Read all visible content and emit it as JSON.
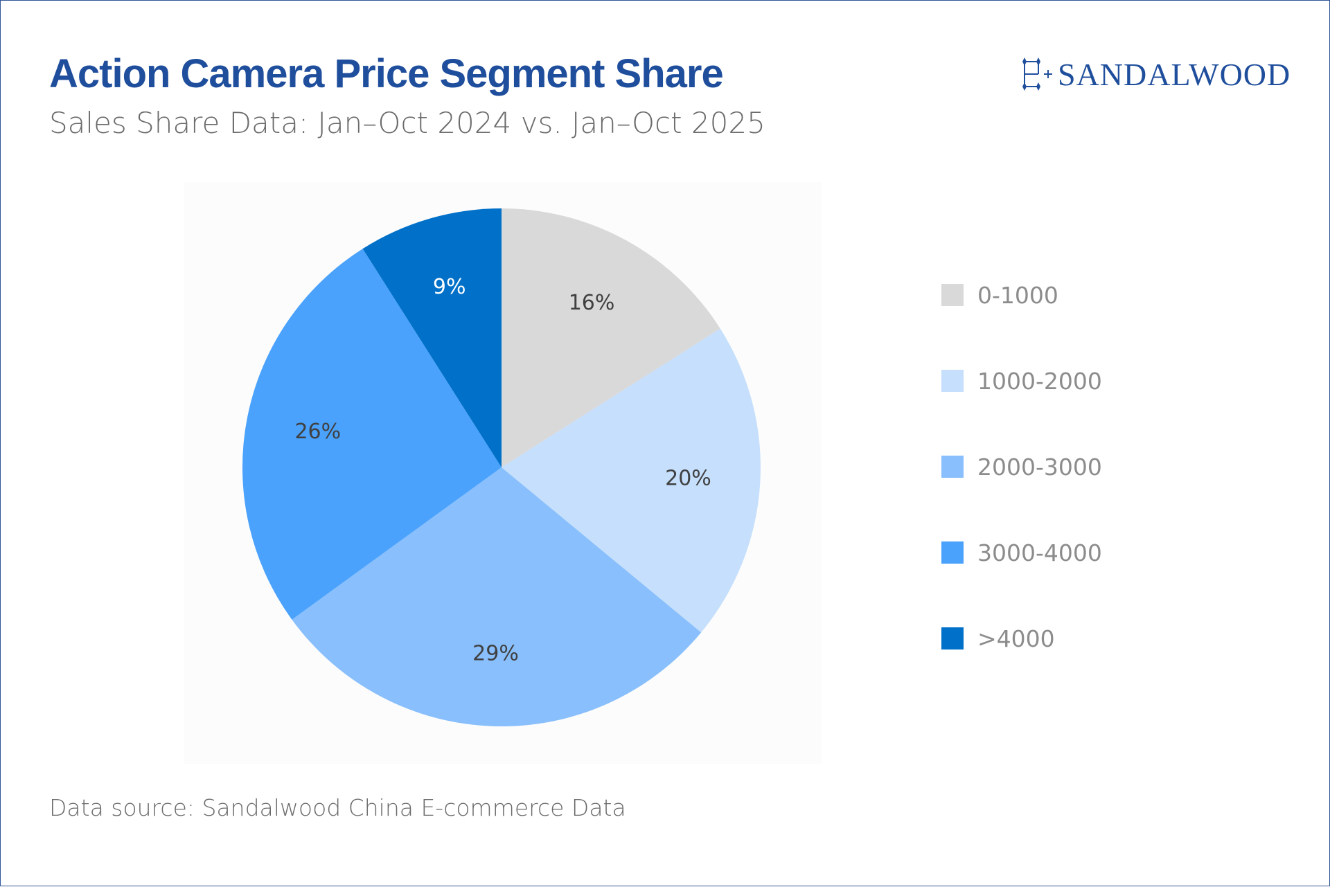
{
  "header": {
    "title": "Action Camera Price Segment Share",
    "subtitle": "Sales Share Data: Jan–Oct 2024 vs. Jan–Oct 2025"
  },
  "brand": {
    "name": "SANDALWOOD",
    "color": "#1f4e9c"
  },
  "footer": {
    "source": "Data source: Sandalwood China E-commerce Data"
  },
  "chart_data": {
    "type": "pie",
    "title": "Action Camera Price Segment Share",
    "subtitle": "Sales Share Data: Jan–Oct 2024 vs. Jan–Oct 2025",
    "legend_position": "right",
    "start_angle": "12 o'clock",
    "direction": "clockwise",
    "slices": [
      {
        "label": "0-1000",
        "value": 16,
        "display": "16%",
        "color": "#d9d9d9",
        "label_color": "#404040"
      },
      {
        "label": "1000-2000",
        "value": 20,
        "display": "20%",
        "color": "#c5dffc",
        "label_color": "#404040"
      },
      {
        "label": "2000-3000",
        "value": 29,
        "display": "29%",
        "color": "#88bffc",
        "label_color": "#404040"
      },
      {
        "label": "3000-4000",
        "value": 26,
        "display": "26%",
        "color": "#4aa2fc",
        "label_color": "#404040"
      },
      {
        "label": ">4000",
        "value": 9,
        "display": "9%",
        "color": "#0070c8",
        "label_color": "#ffffff"
      }
    ]
  }
}
